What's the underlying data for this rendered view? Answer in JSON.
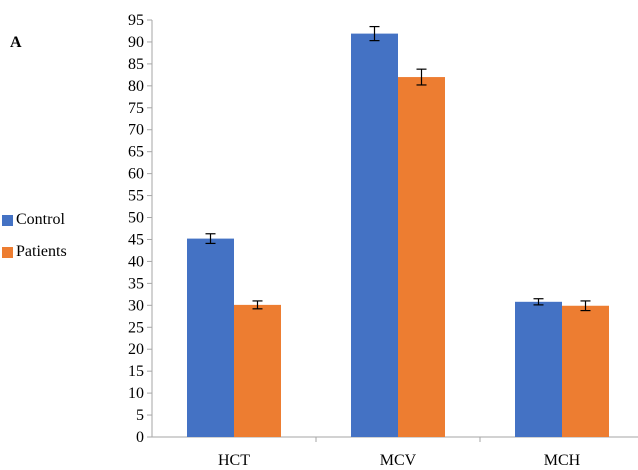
{
  "panel_label": "A",
  "chart_data": {
    "type": "bar",
    "categories": [
      "HCT",
      "MCV",
      "MCH"
    ],
    "series": [
      {
        "name": "Control",
        "color": "#4472C4",
        "values": [
          45.2,
          91.9,
          30.8
        ],
        "errors": [
          1.1,
          1.6,
          0.7
        ]
      },
      {
        "name": "Patients",
        "color": "#ED7D31",
        "values": [
          30.1,
          82.0,
          29.9
        ],
        "errors": [
          0.9,
          1.8,
          1.1
        ]
      }
    ],
    "ylim": [
      0,
      95
    ],
    "ytick_step": 5,
    "title": "",
    "xlabel": "",
    "ylabel": "",
    "grid": false,
    "legend_position": "left"
  }
}
